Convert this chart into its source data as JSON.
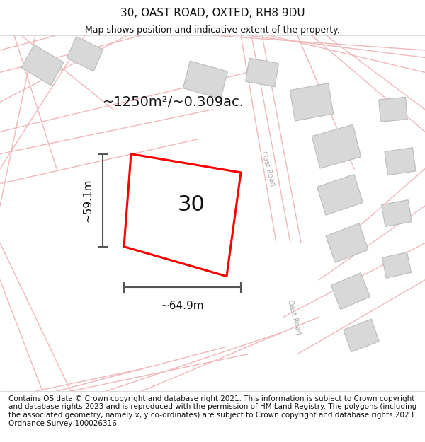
{
  "title": "30, OAST ROAD, OXTED, RH8 9DU",
  "subtitle": "Map shows position and indicative extent of the property.",
  "footer": "Contains OS data © Crown copyright and database right 2021. This information is subject to Crown copyright and database rights 2023 and is reproduced with the permission of HM Land Registry. The polygons (including the associated geometry, namely x, y co-ordinates) are subject to Crown copyright and database rights 2023 Ordnance Survey 100026316.",
  "area_label": "~1250m²/~0.309ac.",
  "number_label": "30",
  "width_label": "~64.9m",
  "height_label": "~59.1m",
  "bg_color": "#ffffff",
  "map_bg": "#fdf5f5",
  "road_color": "#f0b8b8",
  "building_color": "#d8d8d8",
  "building_edge": "#cccccc",
  "highlight_color": "#ff0000",
  "highlight_fill": "#ffffff",
  "dim_line_color": "#555555",
  "title_fontsize": 11,
  "subtitle_fontsize": 9,
  "footer_fontsize": 7.5,
  "label_fontsize": 14,
  "number_fontsize": 22,
  "dim_fontsize": 11,
  "road_label_color": "#aaaaaa",
  "road_label_fontsize": 7
}
